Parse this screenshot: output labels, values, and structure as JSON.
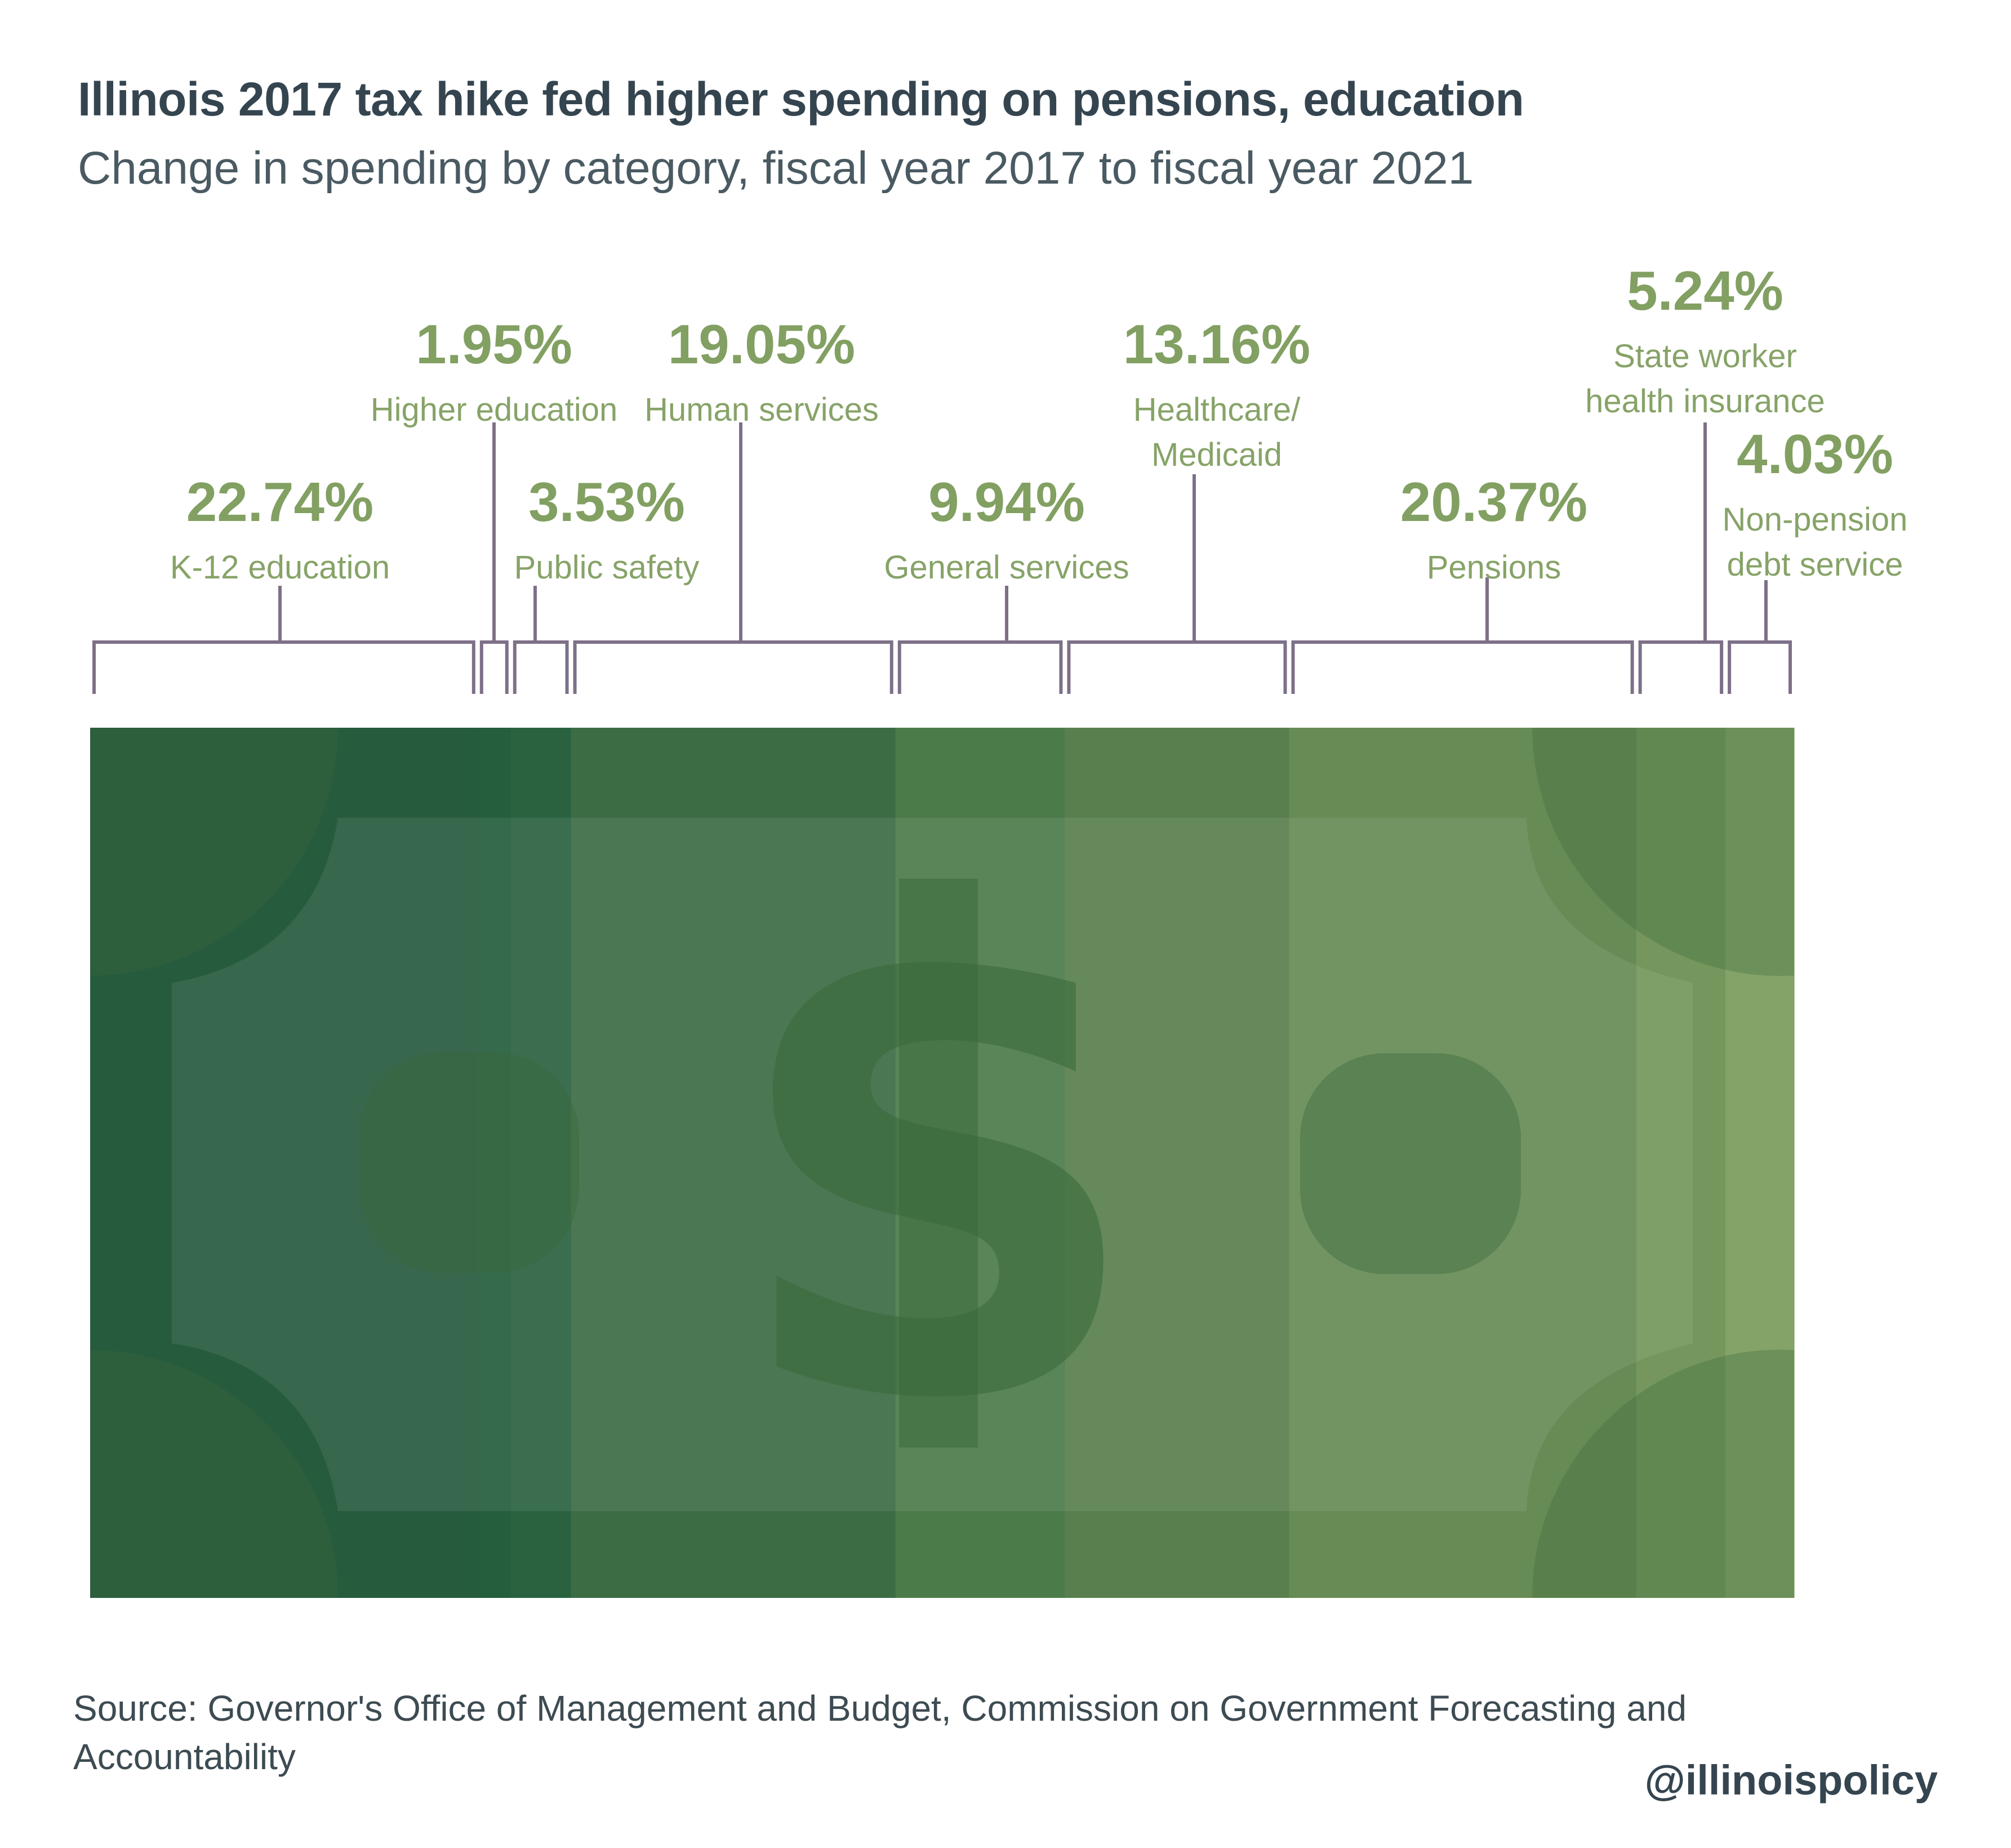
{
  "title": "Illinois 2017 tax hike fed higher spending on pensions, education",
  "subtitle": "Change in spending by category, fiscal year 2017 to fiscal year 2021",
  "source": "Source: Governor's Office of Management and Budget, Commission on Government Forecasting and Accountability",
  "handle": "@illinoispolicy",
  "colors": {
    "title": "#354550",
    "value_label": "#82a062",
    "category_label": "#87a368",
    "bracket": "#7e7088",
    "bill_tint": "#3a6a3c"
  },
  "chart_data": {
    "type": "bar",
    "orientation": "stacked-horizontal",
    "unit": "%",
    "categories": [
      "K-12 education",
      "Higher education",
      "Public safety",
      "Human services",
      "General services",
      "Healthcare/ Medicaid",
      "Pensions",
      "State worker health insurance",
      "Non-pension debt service"
    ],
    "value_labels": [
      "22.74%",
      "1.95%",
      "3.53%",
      "19.05%",
      "9.94%",
      "13.16%",
      "20.37%",
      "5.24%",
      "4.03%"
    ],
    "values": [
      22.74,
      1.95,
      3.53,
      19.05,
      9.94,
      13.16,
      20.37,
      5.24,
      4.03
    ],
    "label_lines": [
      [
        "K-12 education"
      ],
      [
        "Higher education"
      ],
      [
        "Public safety"
      ],
      [
        "Human services"
      ],
      [
        "General services"
      ],
      [
        "Healthcare/",
        "Medicaid"
      ],
      [
        "Pensions"
      ],
      [
        "State worker",
        "health insurance"
      ],
      [
        "Non-pension",
        "debt service"
      ]
    ],
    "segment_colors": [
      "#275b3e",
      "#255e3d",
      "#2a6240",
      "#3c6c44",
      "#4c7b4a",
      "#587f4d",
      "#678b55",
      "#75975d",
      "#84a368"
    ],
    "icon": "dollar-bill-icon"
  }
}
